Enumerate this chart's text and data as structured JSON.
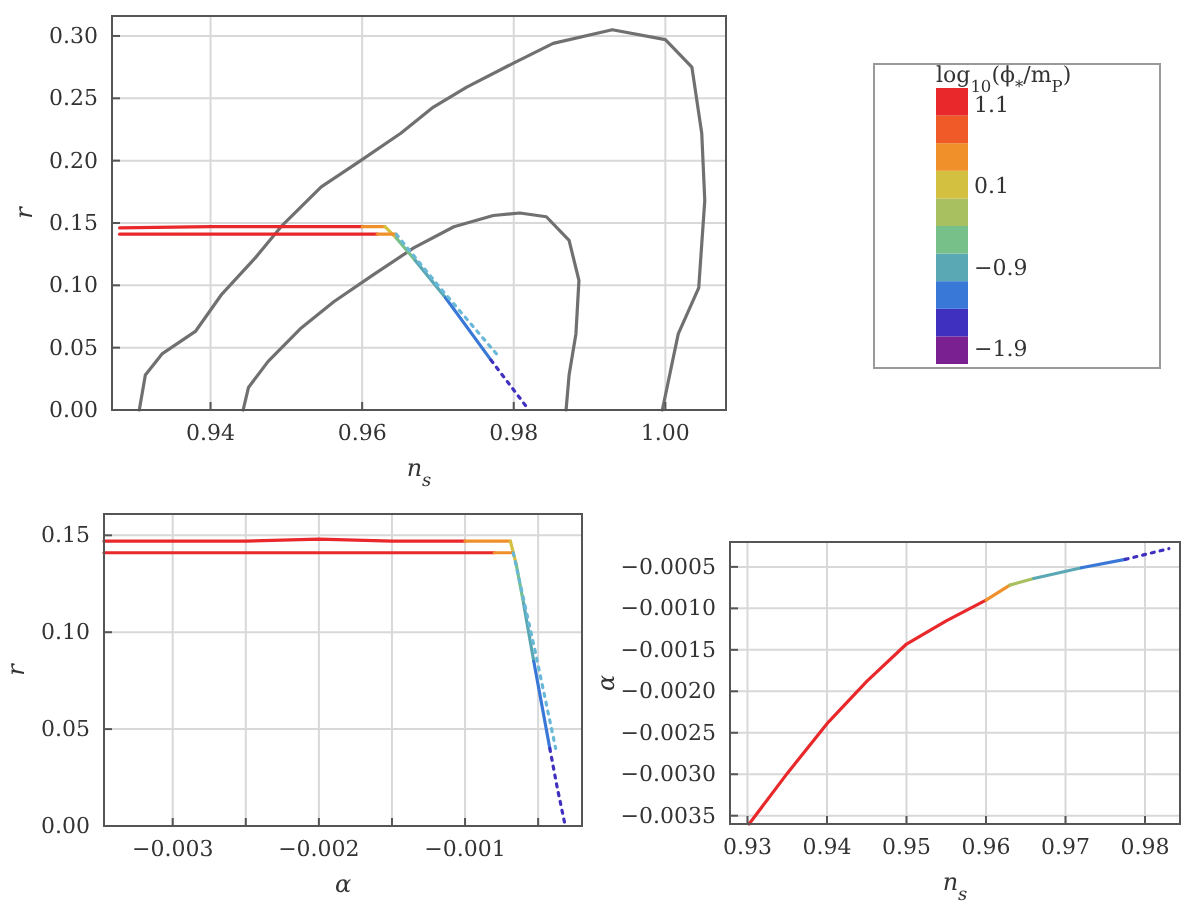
{
  "chart_data": [
    {
      "type": "line",
      "xlabel": "n$_{s}$",
      "ylabel": "r",
      "clabel": "log$_{10}$(ϕ$_{*}$/m$_{P}$)",
      "clim": [
        -2.1,
        1.3
      ],
      "cticks": [
        1.1,
        0.1,
        {
          "value": -0.9,
          "label": "−0.9"
        },
        {
          "value": -1.9,
          "label": "−1.9"
        }
      ],
      "xlim": [
        0.927,
        1.008
      ],
      "xticks": [
        0.94,
        0.96,
        0.98,
        {
          "value": 1,
          "label": "1.00"
        }
      ],
      "ylim": [
        0,
        0.316
      ],
      "yticks": [
        {
          "value": 0,
          "label": "0.00"
        },
        0.05,
        {
          "value": 0.1,
          "label": "0.10"
        },
        0.15,
        {
          "value": 0.2,
          "label": "0.20"
        },
        0.25,
        {
          "value": 0.3,
          "label": "0.30"
        }
      ],
      "grid": true,
      "marker": "none",
      "line_style": "solid",
      "series": [
        {
          "color": "#707070",
          "x": [
            0.9306,
            0.9314,
            0.9336,
            0.938,
            0.9415,
            0.9459,
            0.9493,
            0.9546,
            0.9598,
            0.9651,
            0.9694,
            0.9738,
            0.9799,
            0.9852,
            0.993,
            1.0,
            1.0035,
            1.0048,
            1.0052,
            1.0044,
            1.0017,
            0.9996
          ],
          "values": [
            0,
            0.028,
            0.045,
            0.063,
            0.093,
            0.122,
            0.147,
            0.179,
            0.2,
            0.222,
            0.243,
            0.259,
            0.278,
            0.294,
            0.305,
            0.297,
            0.275,
            0.222,
            0.168,
            0.098,
            0.061,
            0
          ]
        },
        {
          "color": "#707070",
          "x": [
            0.9443,
            0.945,
            0.9476,
            0.952,
            0.9563,
            0.9616,
            0.9668,
            0.9721,
            0.9773,
            0.9808,
            0.9843,
            0.9873,
            0.9886,
            0.9882,
            0.9873,
            0.9869
          ],
          "values": [
            0,
            0.018,
            0.039,
            0.066,
            0.087,
            0.109,
            0.13,
            0.147,
            0.156,
            0.158,
            0.155,
            0.136,
            0.104,
            0.061,
            0.028,
            0
          ]
        },
        {
          "color": "#e8282a",
          "x": [
            0.928,
            0.94,
            0.95,
            0.96
          ],
          "values": [
            0.146,
            0.147,
            0.147,
            0.147
          ]
        },
        {
          "color": "#f0902a",
          "x": [
            0.96,
            0.963
          ],
          "values": [
            0.147,
            0.147
          ]
        },
        {
          "color": "#d4c040",
          "x": [
            0.963,
            0.9645
          ],
          "values": [
            0.147,
            0.138
          ]
        },
        {
          "color": "#78c08a",
          "x": [
            0.9645,
            0.967
          ],
          "values": [
            0.138,
            0.12
          ]
        },
        {
          "color": "#5aa8b4",
          "x": [
            0.967,
            0.971
          ],
          "values": [
            0.12,
            0.09
          ]
        },
        {
          "color": "#3a78d8",
          "x": [
            0.971,
            0.977
          ],
          "values": [
            0.09,
            0.04
          ]
        },
        {
          "color": "#4030c0",
          "line_style": "dotted",
          "x": [
            0.977,
            0.9795,
            0.982
          ],
          "values": [
            0.04,
            0.02,
            0
          ]
        },
        {
          "color": "#e8282a",
          "x": [
            0.928,
            0.94,
            0.95,
            0.962
          ],
          "values": [
            0.141,
            0.141,
            0.141,
            0.141
          ]
        },
        {
          "color": "#f0902a",
          "x": [
            0.962,
            0.9645
          ],
          "values": [
            0.141,
            0.141
          ]
        },
        {
          "color": "#6ab8d8",
          "line_style": "dotted",
          "x": [
            0.9645,
            0.97,
            0.978
          ],
          "values": [
            0.141,
            0.1,
            0.043
          ]
        }
      ]
    },
    {
      "type": "line",
      "xlabel": "α",
      "ylabel": "r",
      "xlim": [
        -0.00347,
        -0.0002
      ],
      "xticks": [
        {
          "value": -0.003,
          "label": "−0.003"
        },
        {
          "value": -0.0025,
          "label": null
        },
        {
          "value": -0.002,
          "label": "−0.002"
        },
        {
          "value": -0.0015,
          "label": null
        },
        {
          "value": -0.001,
          "label": "−0.001"
        },
        {
          "value": -0.0005,
          "label": null
        }
      ],
      "ylim": [
        0,
        0.161
      ],
      "yticks": [
        {
          "value": 0,
          "label": "0.00"
        },
        0.05,
        {
          "value": 0.1,
          "label": "0.10"
        },
        0.15
      ],
      "grid": true,
      "marker": "none",
      "line_style": "solid",
      "series": [
        {
          "color": "#e8282a",
          "x": [
            -0.00347,
            -0.003,
            -0.0025,
            -0.002,
            -0.0015,
            -0.001
          ],
          "values": [
            0.147,
            0.147,
            0.147,
            0.148,
            0.147,
            0.147
          ]
        },
        {
          "color": "#f0902a",
          "x": [
            -0.001,
            -0.00069
          ],
          "values": [
            0.147,
            0.147
          ]
        },
        {
          "color": "#d4c040",
          "x": [
            -0.00069,
            -0.00065
          ],
          "values": [
            0.147,
            0.135
          ]
        },
        {
          "color": "#78c08a",
          "x": [
            -0.00065,
            -0.0006
          ],
          "values": [
            0.135,
            0.115
          ]
        },
        {
          "color": "#5aa8b4",
          "x": [
            -0.0006,
            -0.00053
          ],
          "values": [
            0.115,
            0.085
          ]
        },
        {
          "color": "#3a78d8",
          "x": [
            -0.00053,
            -0.00042
          ],
          "values": [
            0.085,
            0.04
          ]
        },
        {
          "color": "#4030c0",
          "line_style": "dotted",
          "x": [
            -0.00042,
            -0.00037,
            -0.00032
          ],
          "values": [
            0.04,
            0.02,
            0.002
          ]
        },
        {
          "color": "#e8282a",
          "x": [
            -0.00347,
            -0.002,
            -0.001,
            -0.0008
          ],
          "values": [
            0.141,
            0.141,
            0.141,
            0.141
          ]
        },
        {
          "color": "#f0902a",
          "x": [
            -0.0008,
            -0.00067
          ],
          "values": [
            0.141,
            0.141
          ]
        },
        {
          "color": "#6ab8d8",
          "line_style": "dotted",
          "x": [
            -0.00067,
            -0.00052,
            -0.00038
          ],
          "values": [
            0.141,
            0.09,
            0.04
          ]
        }
      ]
    },
    {
      "type": "line",
      "xlabel": "n$_{s}$",
      "ylabel": "α",
      "xlim": [
        0.9278,
        0.9844
      ],
      "xticks": [
        0.93,
        0.94,
        0.95,
        0.96,
        0.97,
        0.98
      ],
      "ylim": [
        -0.0036,
        -0.0002
      ],
      "yticks": [
        {
          "value": -0.0005,
          "label": "−0.0005"
        },
        {
          "value": -0.001,
          "label": "−0.0010"
        },
        {
          "value": -0.0015,
          "label": "−0.0015"
        },
        {
          "value": -0.002,
          "label": "−0.0020"
        },
        {
          "value": -0.0025,
          "label": "−0.0025"
        },
        {
          "value": -0.003,
          "label": "−0.0030"
        },
        {
          "value": -0.0035,
          "label": "−0.0035"
        }
      ],
      "grid": true,
      "marker": "none",
      "line_style": "solid",
      "series": [
        {
          "color": "#e8282a",
          "x": [
            0.9302,
            0.935,
            0.94,
            0.945,
            0.95,
            0.955,
            0.96
          ],
          "values": [
            -0.0036,
            -0.00299,
            -0.00239,
            -0.00188,
            -0.00143,
            -0.00115,
            -0.0009
          ]
        },
        {
          "color": "#f0902a",
          "x": [
            0.96,
            0.963
          ],
          "values": [
            -0.0009,
            -0.00072
          ]
        },
        {
          "color": "#a8c060",
          "x": [
            0.963,
            0.966
          ],
          "values": [
            -0.00072,
            -0.00064
          ]
        },
        {
          "color": "#5aa8b4",
          "x": [
            0.966,
            0.972
          ],
          "values": [
            -0.00064,
            -0.00051
          ]
        },
        {
          "color": "#3a78d8",
          "x": [
            0.972,
            0.9775
          ],
          "values": [
            -0.00051,
            -0.00041
          ]
        },
        {
          "color": "#4030c0",
          "line_style": "dotted",
          "x": [
            0.9775,
            0.983
          ],
          "values": [
            -0.00041,
            -0.00028
          ]
        }
      ]
    }
  ]
}
